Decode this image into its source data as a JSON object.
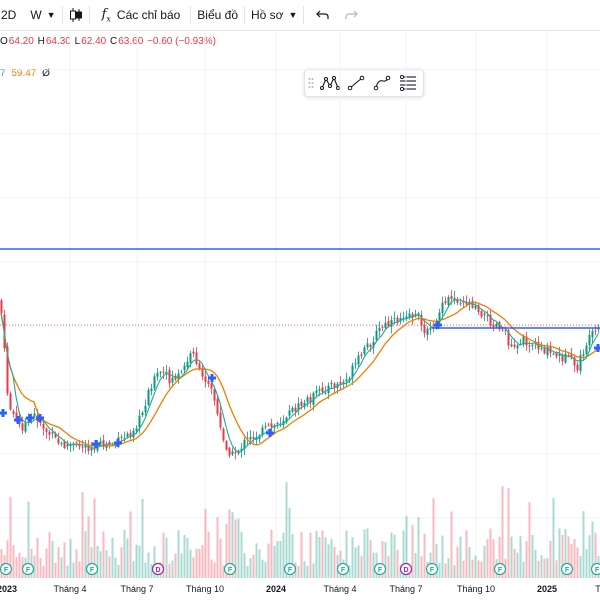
{
  "toolbar": {
    "interval": "2D",
    "chart_type_short": "W",
    "indicators": "Các chỉ báo",
    "chart_menu": "Biểu đồ",
    "profile": "Hồ sơ"
  },
  "ohlc": {
    "o_label": "O",
    "o": "64.20",
    "h_label": "H",
    "h": "64.30",
    "l_label": "L",
    "l": "62.40",
    "c_label": "C",
    "c": "63.60",
    "change": "−0.60 (−0.93%)"
  },
  "ma_legend": {
    "fast_value": "7",
    "slow_value": "59.47",
    "extra": "Ø",
    "fast_color": "#22ab94",
    "slow_color": "#f57c00"
  },
  "drawing_toolbar": {
    "tools": [
      "pattern-tool",
      "trend-line-tool",
      "curve-tool",
      "fib-tool"
    ]
  },
  "colors": {
    "up": "#089981",
    "down": "#f23645",
    "hline": "#2962ff",
    "dotted": "#f23645"
  },
  "x_axis": {
    "labels": [
      "2023",
      "Tháng 4",
      "Tháng 7",
      "Tháng 10",
      "2024",
      "Tháng 4",
      "Tháng 7",
      "Tháng 10",
      "2025",
      "T"
    ]
  },
  "events": {
    "items": [
      "F",
      "F",
      "F",
      "D",
      "F",
      "F",
      "F",
      "F",
      "D",
      "F",
      "F",
      "F",
      "F"
    ]
  },
  "chart_data": {
    "type": "candlestick",
    "price_path": [
      [
        0,
        300
      ],
      [
        8,
        405
      ],
      [
        20,
        428
      ],
      [
        35,
        415
      ],
      [
        45,
        430
      ],
      [
        60,
        445
      ],
      [
        80,
        446
      ],
      [
        100,
        446
      ],
      [
        118,
        442
      ],
      [
        130,
        432
      ],
      [
        140,
        418
      ],
      [
        150,
        385
      ],
      [
        160,
        372
      ],
      [
        170,
        380
      ],
      [
        180,
        375
      ],
      [
        193,
        350
      ],
      [
        200,
        378
      ],
      [
        210,
        380
      ],
      [
        222,
        440
      ],
      [
        232,
        455
      ],
      [
        245,
        442
      ],
      [
        260,
        432
      ],
      [
        275,
        425
      ],
      [
        290,
        412
      ],
      [
        305,
        402
      ],
      [
        325,
        388
      ],
      [
        345,
        382
      ],
      [
        358,
        360
      ],
      [
        368,
        345
      ],
      [
        380,
        328
      ],
      [
        395,
        322
      ],
      [
        405,
        312
      ],
      [
        418,
        318
      ],
      [
        428,
        335
      ],
      [
        440,
        310
      ],
      [
        450,
        297
      ],
      [
        462,
        300
      ],
      [
        475,
        305
      ],
      [
        488,
        320
      ],
      [
        500,
        326
      ],
      [
        510,
        345
      ],
      [
        525,
        340
      ],
      [
        540,
        347
      ],
      [
        552,
        355
      ],
      [
        565,
        358
      ],
      [
        577,
        368
      ],
      [
        585,
        345
      ],
      [
        595,
        332
      ]
    ],
    "hline_solid": [
      {
        "x_from": 0,
        "x_to": 600,
        "level": "upper"
      },
      {
        "x_from": 432,
        "x_to": 600,
        "level": "lower"
      }
    ]
  }
}
